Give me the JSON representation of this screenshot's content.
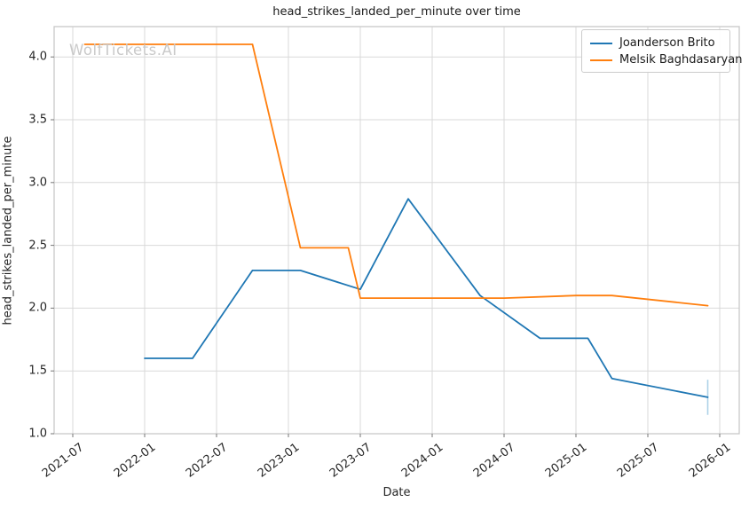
{
  "page": {
    "background": "#ffffff",
    "text_color": "#262626"
  },
  "watermark": {
    "text": "WolfTickets.AI",
    "color": "#c9c9c9"
  },
  "chart_data": {
    "type": "line",
    "title": "head_strikes_landed_per_minute over time",
    "xlabel": "Date",
    "ylabel": "head_strikes_landed_per_minute",
    "x_ticks": [
      "2021-07",
      "2022-01",
      "2022-07",
      "2023-01",
      "2023-07",
      "2024-01",
      "2024-07",
      "2025-01",
      "2025-07",
      "2026-01"
    ],
    "y_ticks": [
      "1.0",
      "1.5",
      "2.0",
      "2.5",
      "3.0",
      "3.5",
      "4.0"
    ],
    "ylim": [
      1.0,
      4.25
    ],
    "grid": true,
    "grid_color": "#d9d9d9",
    "spine_color": "#c8c8c8",
    "legend_position": "top-right",
    "series": [
      {
        "name": "Joanderson Brito",
        "color": "#1f77b4",
        "points": [
          [
            "2022-01",
            1.6
          ],
          [
            "2022-05",
            1.6
          ],
          [
            "2022-10",
            2.3
          ],
          [
            "2023-02",
            2.3
          ],
          [
            "2023-07",
            2.15
          ],
          [
            "2023-11",
            2.87
          ],
          [
            "2024-05",
            2.1
          ],
          [
            "2024-10",
            1.76
          ],
          [
            "2025-02",
            1.76
          ],
          [
            "2025-04",
            1.44
          ],
          [
            "2025-12",
            1.29
          ]
        ],
        "final_error_bar": {
          "date": "2025-12",
          "low": 1.15,
          "high": 1.43,
          "color": "#aed2e8"
        }
      },
      {
        "name": "Melsik Baghdasaryan",
        "color": "#ff7f0e",
        "points": [
          [
            "2021-08",
            4.1
          ],
          [
            "2022-10",
            4.1
          ],
          [
            "2023-02",
            2.48
          ],
          [
            "2023-06",
            2.48
          ],
          [
            "2023-07",
            2.08
          ],
          [
            "2024-07",
            2.08
          ],
          [
            "2025-01",
            2.1
          ],
          [
            "2025-04",
            2.1
          ],
          [
            "2025-12",
            2.02
          ]
        ]
      }
    ]
  }
}
